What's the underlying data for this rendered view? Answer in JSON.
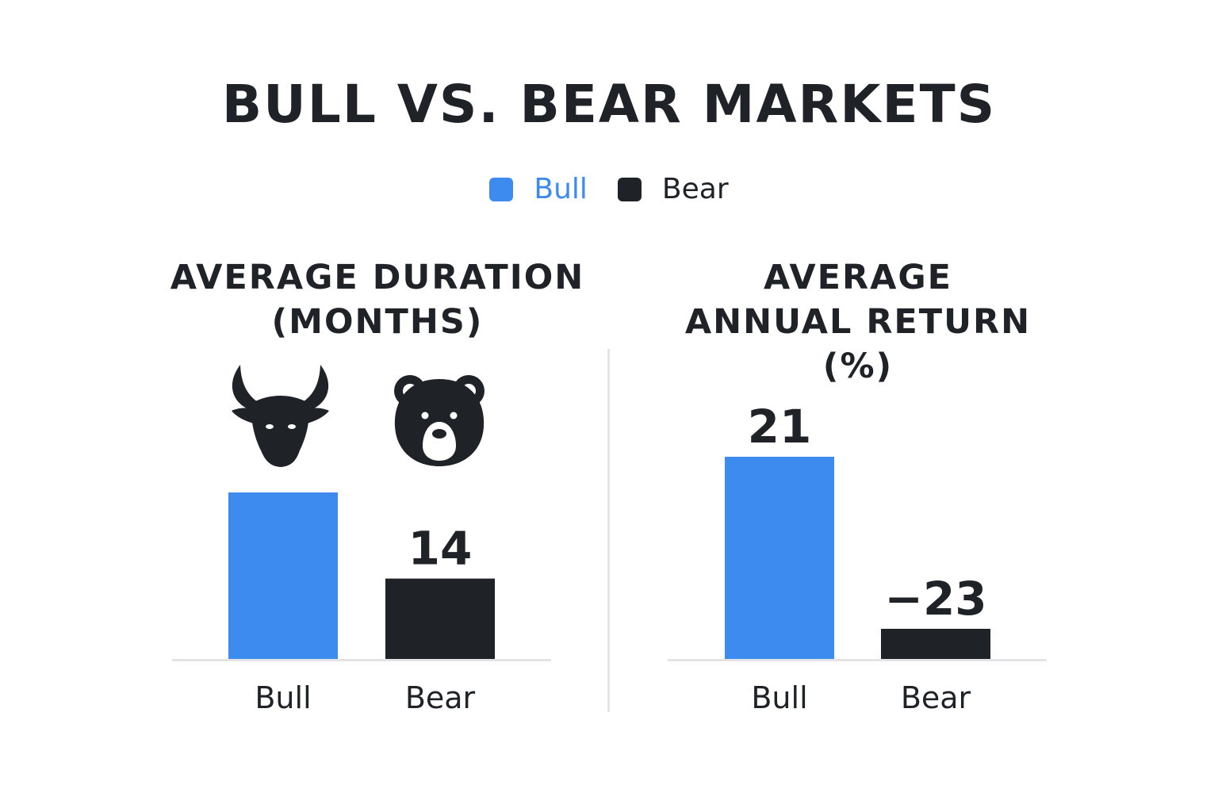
{
  "title": "BULL VS. BEAR MARKETS",
  "legend": [
    {
      "label": "Bull",
      "color": "#3d8bef",
      "text_color": "#3d8bef"
    },
    {
      "label": "Bear",
      "color": "#1f2328",
      "text_color": "#1f2328"
    }
  ],
  "panels": [
    {
      "title_line1": "AVERAGE DURATION",
      "title_line2": "(MONTHS)"
    },
    {
      "title_line1": "AVERAGE",
      "title_line2": "ANNUAL RETURN (%)"
    }
  ],
  "icons": [
    "bull-icon",
    "bear-icon"
  ],
  "colors": {
    "bull": "#3d8bef",
    "bear": "#1f2328",
    "axis": "#e2e4e7",
    "text": "#1f2328"
  },
  "chart_data": [
    {
      "type": "bar",
      "title": "AVERAGE DURATION (MONTHS)",
      "categories": [
        "Bull",
        "Bear"
      ],
      "values": [
        29,
        14
      ],
      "data_labels": [
        "",
        "14"
      ],
      "ylim": [
        0,
        40
      ],
      "grid": false,
      "legend": "top-center"
    },
    {
      "type": "bar",
      "title": "AVERAGE ANNUAL RETURN (%)",
      "categories": [
        "Bull",
        "Bear"
      ],
      "values": [
        21,
        -23
      ],
      "data_labels": [
        "21",
        "−23"
      ],
      "grid": false,
      "legend": "top-center"
    }
  ]
}
